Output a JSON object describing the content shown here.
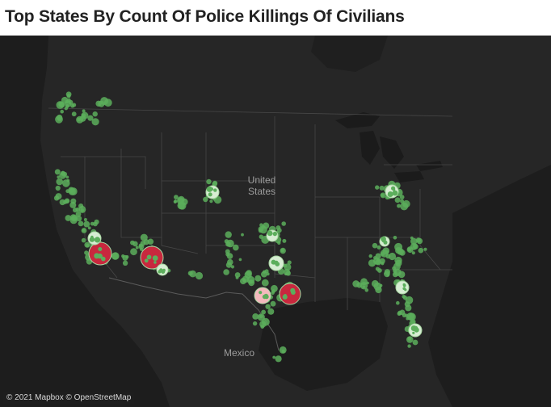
{
  "title": "Top States By Count Of Police Killings Of Civilians",
  "map": {
    "base_style": "dark",
    "place_labels": {
      "country_us_line1": "United",
      "country_us_line2": "States",
      "country_mexico": "Mexico"
    },
    "attribution": "© 2021 Mapbox © OpenStreetMap",
    "colors": {
      "background": "#262626",
      "land": "#2e2e2e",
      "water": "#1c1c1c",
      "borders": "#4a4a4a",
      "marker_green": "#5cae5c",
      "marker_light": "#d7edd3",
      "marker_pink": "#f3b9bd",
      "marker_red": "#c8283e",
      "marker_outline": "#a9d7a3"
    },
    "highlighted_markers": [
      {
        "area": "Los Angeles area",
        "level": "high"
      },
      {
        "area": "Phoenix area",
        "level": "high"
      },
      {
        "area": "Houston area",
        "level": "high"
      },
      {
        "area": "San Antonio area",
        "level": "medium"
      },
      {
        "area": "Fresno area",
        "level": "low"
      },
      {
        "area": "Tucson area",
        "level": "low"
      },
      {
        "area": "Denver area",
        "level": "low"
      },
      {
        "area": "Dallas area",
        "level": "low"
      },
      {
        "area": "Oklahoma City area",
        "level": "low"
      },
      {
        "area": "Ohio area",
        "level": "low"
      },
      {
        "area": "Orlando area",
        "level": "low"
      },
      {
        "area": "Tampa area",
        "level": "low"
      },
      {
        "area": "Atlanta area",
        "level": "low"
      }
    ]
  }
}
